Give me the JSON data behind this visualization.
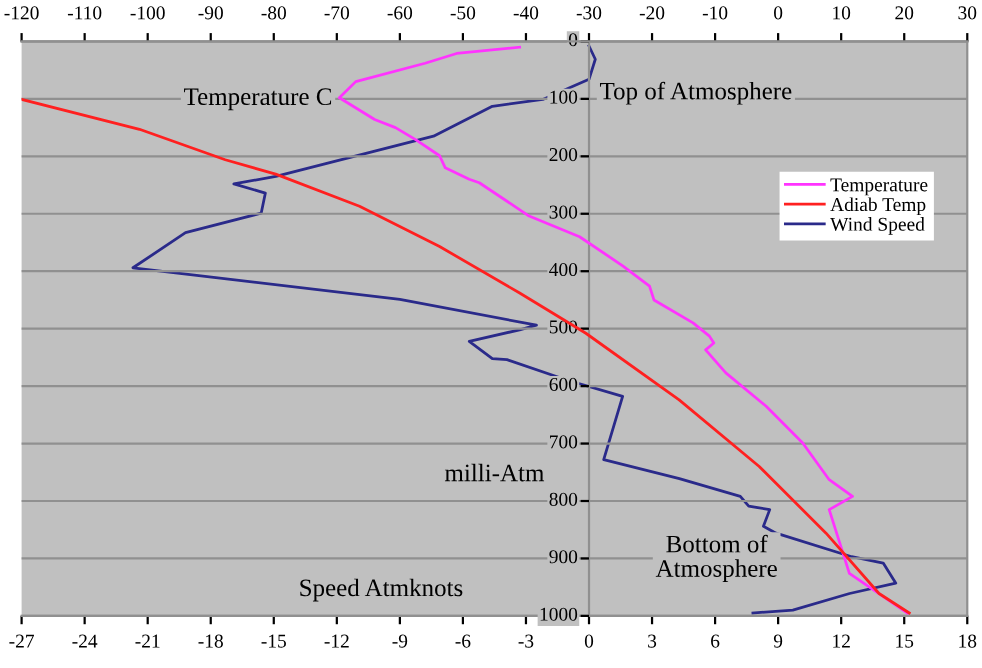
{
  "chart_data": {
    "type": "line",
    "xlabel": "Speed Atmknots",
    "x2label": "Temperature C",
    "ylabel": "milli-Atm",
    "annotations": [
      "Top of Atmosphere",
      "Bottom of\nAtmosphere"
    ],
    "xlim": [
      -27,
      18
    ],
    "xticks": [
      -27,
      -24,
      -21,
      -18,
      -15,
      -12,
      -9,
      -6,
      -3,
      0,
      3,
      6,
      9,
      12,
      15,
      18
    ],
    "x2lim": [
      -120,
      30
    ],
    "x2ticks": [
      -120,
      -110,
      -100,
      -90,
      -80,
      -70,
      -60,
      -50,
      -40,
      -30,
      -20,
      -10,
      0,
      10,
      20,
      30
    ],
    "ylim": [
      1000,
      0
    ],
    "yticks": [
      0,
      100,
      200,
      300,
      400,
      500,
      600,
      700,
      800,
      900,
      1000
    ],
    "grid": "y",
    "legend": "top right",
    "marker": "none",
    "line_style": "solid",
    "series": [
      {
        "name": "Temperature",
        "color": "#ff33ff",
        "axis": "x2",
        "x": [
          -41,
          -51,
          -56,
          -67,
          -69.6,
          -64,
          -60.7,
          -57.5,
          -53.7,
          -52.8,
          -49,
          -47.4,
          -39.5,
          -31.5,
          -24.6,
          -20.4,
          -19.7,
          -13.5,
          -10.9,
          -10.2,
          -11.5,
          -8.3,
          -1.9,
          3.9,
          8.1,
          11.8,
          8.1,
          11.3,
          20.5
        ],
        "values": [
          10,
          21,
          38,
          70,
          98,
          136,
          150,
          171,
          199,
          220,
          240,
          246,
          304,
          340,
          391,
          426,
          450,
          490,
          513,
          525,
          537,
          577,
          635,
          699,
          763,
          792,
          815,
          926,
          995
        ]
      },
      {
        "name": "Adiab Temp",
        "color": "#ff2020",
        "axis": "x2",
        "x": [
          -120,
          -101.3,
          -87.7,
          -79.7,
          -66.4,
          -53.7,
          -41,
          -30.5,
          -15.7,
          -3,
          7.6,
          16,
          20.8
        ],
        "values": [
          101,
          153,
          206,
          231,
          287,
          357,
          438,
          508,
          624,
          740,
          856,
          961,
          995
        ]
      },
      {
        "name": "Wind Speed",
        "color": "#2a2a8a",
        "x": [
          0,
          0.3,
          0,
          -2.2,
          -4.6,
          -7.4,
          -14.9,
          -16.9,
          -15.4,
          -15.6,
          -19.2,
          -21.7,
          -9,
          -2.5,
          -3.3,
          -5.7,
          -4.6,
          -3.9,
          -1.1,
          1.6,
          0.7,
          4.3,
          7.2,
          7.6,
          8.6,
          8.3,
          8.9,
          12.5,
          14,
          14.6,
          12.4,
          9.7,
          7.8
        ],
        "values": [
          8,
          31,
          66,
          101,
          113,
          165,
          235,
          248,
          264,
          299,
          333,
          394,
          449,
          494,
          502,
          522,
          552,
          554,
          589,
          618,
          728,
          761,
          792,
          809,
          815,
          844,
          856,
          897,
          908,
          943,
          961,
          990,
          995
        ]
      }
    ]
  }
}
